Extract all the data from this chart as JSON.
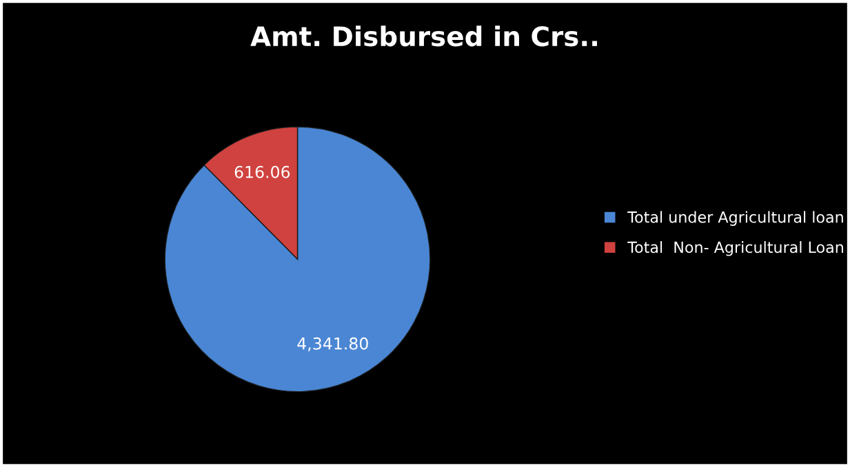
{
  "chart_data": {
    "type": "pie",
    "title": "Amt. Disbursed in Crs..",
    "categories": [
      "Total under Agricultural loan",
      "Total  Non- Agricultural Loan"
    ],
    "values": [
      4341.8,
      616.06
    ],
    "value_labels": [
      "4,341.80",
      "616.06"
    ],
    "colors": [
      "#4a86d4",
      "#d0423f"
    ],
    "legend": "right"
  }
}
